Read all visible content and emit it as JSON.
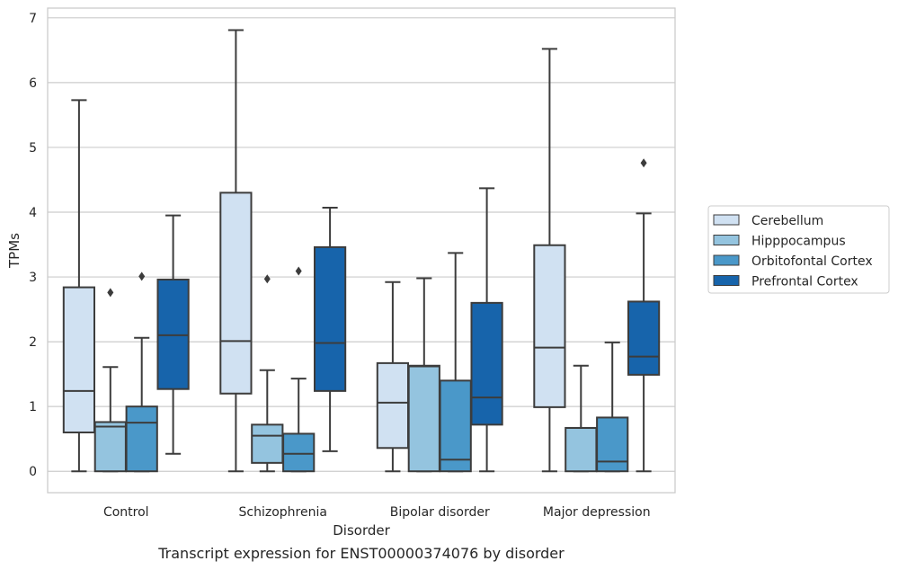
{
  "chart_data": {
    "type": "box",
    "title": "",
    "caption": "Transcript expression for ENST00000374076 by disorder",
    "xlabel": "Disorder",
    "ylabel": "TPMs",
    "ylim": [
      -0.33,
      7.15
    ],
    "yticks": [
      0,
      1,
      2,
      3,
      4,
      5,
      6,
      7
    ],
    "grid": "horizontal",
    "legend_position": "right",
    "categories": [
      "Control",
      "Schizophrenia",
      "Bipolar disorder",
      "Major depression"
    ],
    "series": [
      {
        "name": "Cerebellum",
        "color": "#d0e1f2",
        "boxes": [
          {
            "whislo": 0.0,
            "q1": 0.6,
            "med": 1.24,
            "q3": 2.84,
            "whishi": 5.73,
            "fliers": []
          },
          {
            "whislo": 0.0,
            "q1": 1.2,
            "med": 2.01,
            "q3": 4.3,
            "whishi": 6.81,
            "fliers": []
          },
          {
            "whislo": 0.0,
            "q1": 0.36,
            "med": 1.06,
            "q3": 1.67,
            "whishi": 2.92,
            "fliers": []
          },
          {
            "whislo": 0.0,
            "q1": 0.99,
            "med": 1.91,
            "q3": 3.49,
            "whishi": 6.52,
            "fliers": []
          }
        ]
      },
      {
        "name": "Hipppocampus",
        "color": "#94c4df",
        "boxes": [
          {
            "whislo": 0.0,
            "q1": 0.0,
            "med": 0.69,
            "q3": 0.76,
            "whishi": 1.61,
            "fliers": [
              2.76
            ]
          },
          {
            "whislo": 0.0,
            "q1": 0.13,
            "med": 0.55,
            "q3": 0.72,
            "whishi": 1.56,
            "fliers": [
              2.97
            ]
          },
          {
            "whislo": 0.0,
            "q1": 0.0,
            "med": 1.62,
            "q3": 1.63,
            "whishi": 2.98,
            "fliers": []
          },
          {
            "whislo": 0.0,
            "q1": 0.0,
            "med": 0.67,
            "q3": 0.67,
            "whishi": 1.63,
            "fliers": []
          }
        ]
      },
      {
        "name": "Orbitofontal Cortex",
        "color": "#4a98c9",
        "boxes": [
          {
            "whislo": 0.0,
            "q1": 0.0,
            "med": 0.75,
            "q3": 1.0,
            "whishi": 2.06,
            "fliers": [
              3.01
            ]
          },
          {
            "whislo": 0.0,
            "q1": 0.0,
            "med": 0.27,
            "q3": 0.58,
            "whishi": 1.43,
            "fliers": [
              3.09
            ]
          },
          {
            "whislo": 0.0,
            "q1": 0.0,
            "med": 0.18,
            "q3": 1.4,
            "whishi": 3.37,
            "fliers": []
          },
          {
            "whislo": 0.0,
            "q1": 0.0,
            "med": 0.15,
            "q3": 0.83,
            "whishi": 1.99,
            "fliers": []
          }
        ]
      },
      {
        "name": "Prefrontal Cortex",
        "color": "#1764ab",
        "boxes": [
          {
            "whislo": 0.27,
            "q1": 1.27,
            "med": 2.1,
            "q3": 2.96,
            "whishi": 3.95,
            "fliers": []
          },
          {
            "whislo": 0.31,
            "q1": 1.24,
            "med": 1.98,
            "q3": 3.46,
            "whishi": 4.07,
            "fliers": []
          },
          {
            "whislo": 0.0,
            "q1": 0.72,
            "med": 1.14,
            "q3": 2.6,
            "whishi": 4.37,
            "fliers": []
          },
          {
            "whislo": 0.0,
            "q1": 1.49,
            "med": 1.77,
            "q3": 2.62,
            "whishi": 3.98,
            "fliers": [
              4.76
            ]
          }
        ]
      }
    ]
  }
}
